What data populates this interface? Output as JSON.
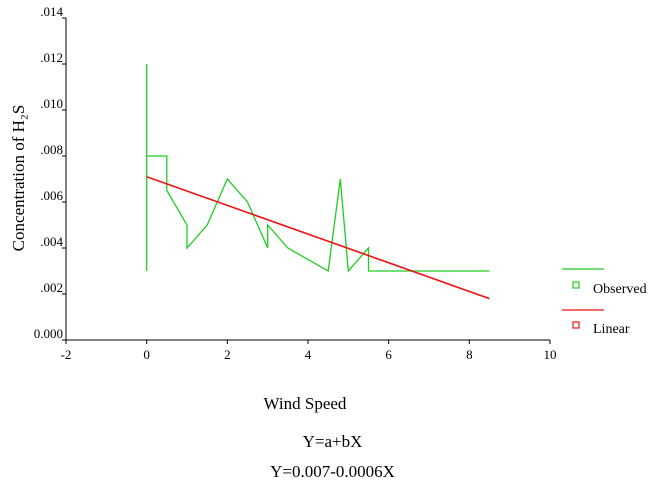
{
  "chart_data": {
    "type": "line",
    "title": "",
    "xlabel": "Wind Speed",
    "ylabel": "Concentration of H₂S",
    "xlim": [
      -2,
      10
    ],
    "ylim": [
      0,
      0.014
    ],
    "x_ticks": [
      "-2",
      "0",
      "2",
      "4",
      "6",
      "8",
      "10"
    ],
    "y_ticks": [
      "0.000",
      ".002",
      ".004",
      ".006",
      ".008",
      ".010",
      ".012",
      ".014"
    ],
    "x_tick_values": [
      -2,
      0,
      2,
      4,
      6,
      8,
      10
    ],
    "y_tick_values": [
      0,
      0.002,
      0.004,
      0.006,
      0.008,
      0.01,
      0.012,
      0.014
    ],
    "grid": false,
    "legend_position": "right",
    "series": [
      {
        "name": "Observed",
        "color": "#22cc22",
        "x": [
          0,
          0,
          0,
          0.5,
          0.5,
          1,
          1,
          1.5,
          2,
          2.5,
          3,
          3,
          3.5,
          4.5,
          4.8,
          5,
          5.5,
          5.5,
          8.5
        ],
        "y": [
          0.003,
          0.012,
          0.008,
          0.008,
          0.0065,
          0.005,
          0.004,
          0.005,
          0.007,
          0.006,
          0.004,
          0.005,
          0.004,
          0.003,
          0.007,
          0.003,
          0.004,
          0.003,
          0.003
        ]
      },
      {
        "name": "Linear",
        "color": "#ee1111",
        "x": [
          0,
          8.5
        ],
        "y": [
          0.0071,
          0.0018
        ]
      }
    ],
    "annotations": [
      "Y=a+bX",
      "Y=0.007-0.0006X"
    ]
  }
}
